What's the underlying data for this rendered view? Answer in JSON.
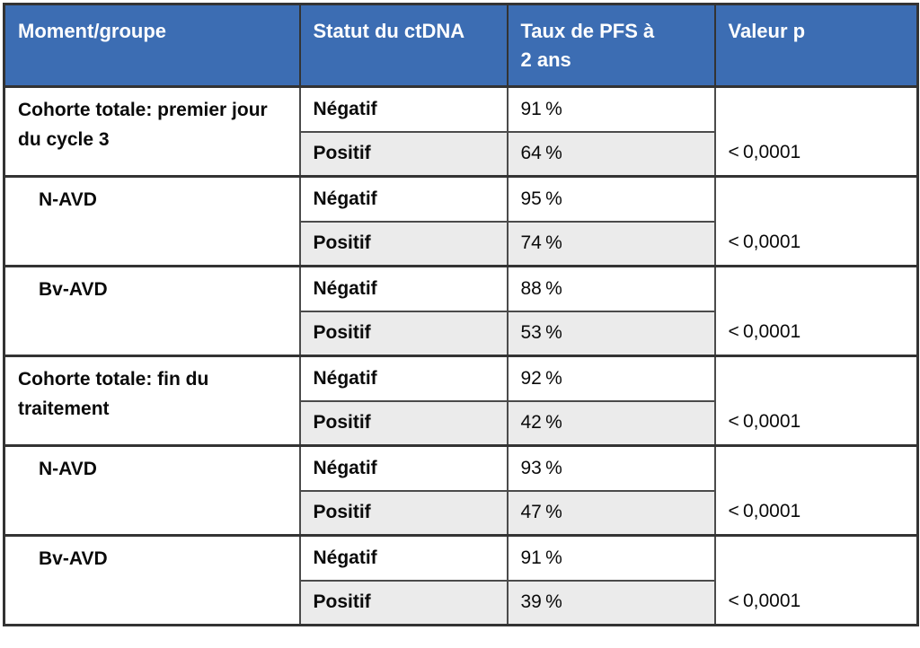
{
  "table": {
    "headers": [
      "Moment/groupe",
      "Statut du ctDNA",
      "Taux de PFS à 2 ans",
      "Valeur p"
    ],
    "groups": [
      {
        "label": "Cohorte totale: premier jour du cycle 3",
        "indent": false,
        "rows": [
          {
            "status": "Négatif",
            "rate": "91 %"
          },
          {
            "status": "Positif",
            "rate": "64 %"
          }
        ],
        "p_value": "< 0,0001"
      },
      {
        "label": "N-AVD",
        "indent": true,
        "rows": [
          {
            "status": "Négatif",
            "rate": "95 %"
          },
          {
            "status": "Positif",
            "rate": "74 %"
          }
        ],
        "p_value": "< 0,0001"
      },
      {
        "label": "Bv-AVD",
        "indent": true,
        "rows": [
          {
            "status": "Négatif",
            "rate": "88 %"
          },
          {
            "status": "Positif",
            "rate": "53 %"
          }
        ],
        "p_value": "< 0,0001"
      },
      {
        "label": "Cohorte totale: fin du traitement",
        "indent": false,
        "rows": [
          {
            "status": "Négatif",
            "rate": "92 %"
          },
          {
            "status": "Positif",
            "rate": "42 %"
          }
        ],
        "p_value": "< 0,0001"
      },
      {
        "label": "N-AVD",
        "indent": true,
        "rows": [
          {
            "status": "Négatif",
            "rate": "93 %"
          },
          {
            "status": "Positif",
            "rate": "47 %"
          }
        ],
        "p_value": "< 0,0001"
      },
      {
        "label": "Bv-AVD",
        "indent": true,
        "rows": [
          {
            "status": "Négatif",
            "rate": "91 %"
          },
          {
            "status": "Positif",
            "rate": "39 %"
          }
        ],
        "p_value": "< 0,0001"
      }
    ],
    "colors": {
      "header_bg": "#3c6db3",
      "header_text": "#ffffff",
      "shaded_row_bg": "#ebebeb",
      "border": "#333333",
      "text": "#0a0a0a"
    }
  }
}
